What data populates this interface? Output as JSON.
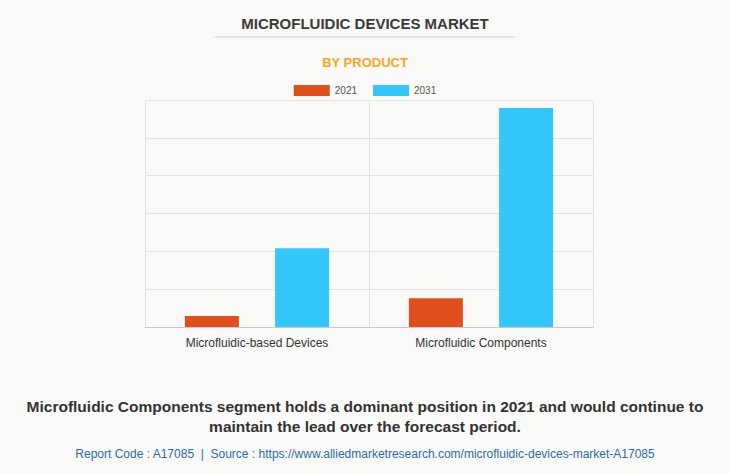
{
  "chart_data": {
    "type": "bar",
    "title": "MICROFLUIDIC DEVICES MARKET",
    "subtitle": "BY PRODUCT",
    "categories": [
      "Microfluidic-based Devices",
      "Microfluidic Components"
    ],
    "series": [
      {
        "name": "2021",
        "color": "#e04e1b",
        "values": [
          0.29,
          0.76
        ]
      },
      {
        "name": "2031",
        "color": "#33c6fb",
        "values": [
          2.08,
          5.79
        ]
      }
    ],
    "ylim": [
      0,
      6
    ],
    "yticks": [
      0,
      1,
      2,
      3,
      4,
      5,
      6
    ],
    "grid": true,
    "tick_labels": "x",
    "legend": "top",
    "annotations": [
      "Microfluidic Components segment holds a dominant position in 2021 and would continue to maintain the lead over the forecast period.",
      "Report Code : A17085  |  Source : https://www.alliedmarketresearch.com/microfluidic-devices-market-A17085"
    ]
  }
}
